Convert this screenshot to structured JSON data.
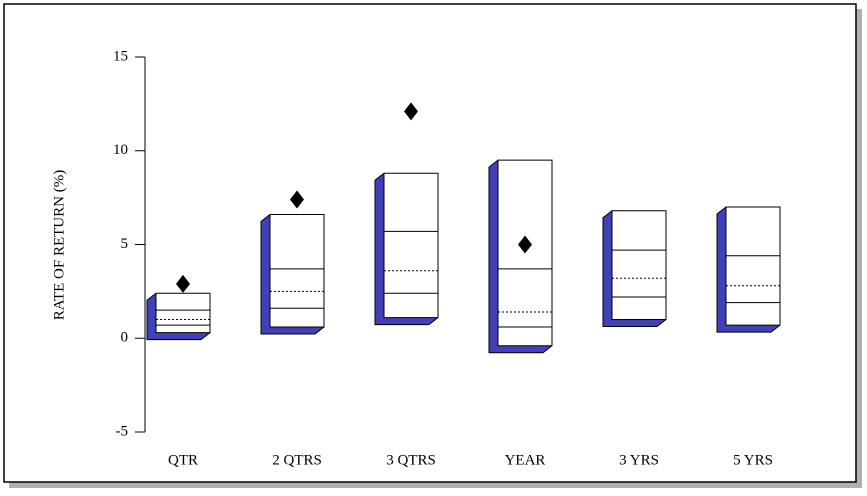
{
  "chart_data": {
    "type": "floating-box",
    "y_label": "RATE OF RETURN  (%)",
    "categories": [
      "QTR",
      "2 QTRS",
      "3 QTRS",
      "YEAR",
      "3 YRS",
      "5 YRS"
    ],
    "high": [
      2.4,
      6.6,
      8.8,
      9.5,
      6.8,
      7.0
    ],
    "q1": [
      1.5,
      3.7,
      5.7,
      3.7,
      4.7,
      4.4
    ],
    "median": [
      1.0,
      2.5,
      3.6,
      1.4,
      3.2,
      2.8
    ],
    "q3": [
      0.7,
      1.6,
      2.4,
      0.6,
      2.2,
      1.9
    ],
    "low": [
      0.3,
      0.6,
      1.1,
      -0.4,
      1.0,
      0.7
    ],
    "point": [
      2.9,
      7.4,
      12.1,
      5.0,
      null,
      null
    ],
    "box_color": "#ffffff",
    "side_color": "#4040b8",
    "point_color": "#000000",
    "ylim": [
      -5,
      15
    ],
    "yticks": [
      -5,
      0,
      5,
      10,
      15
    ]
  }
}
